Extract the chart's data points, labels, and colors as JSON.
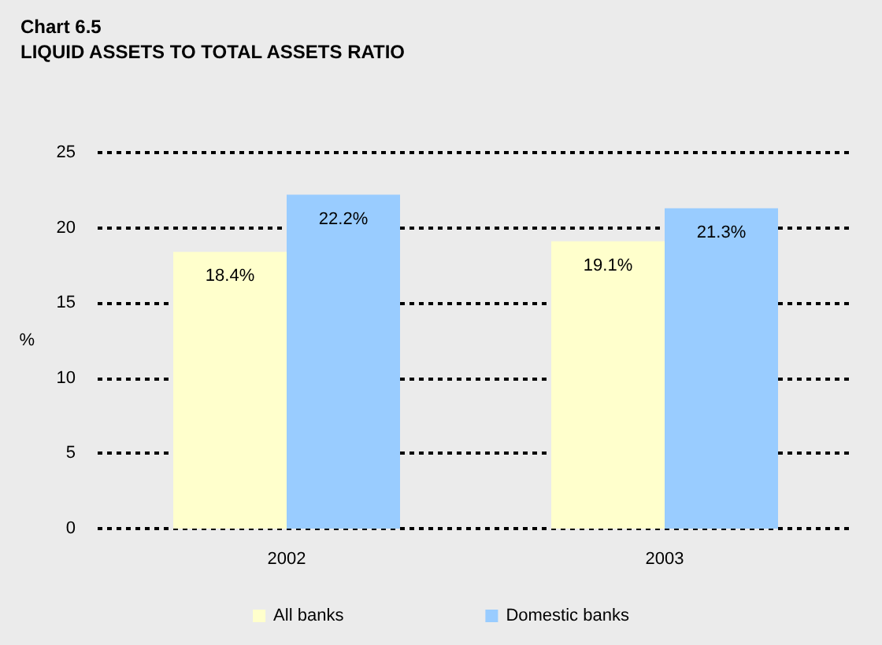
{
  "chart_data": {
    "type": "bar",
    "title": "Chart 6.5",
    "subtitle": "LIQUID ASSETS TO TOTAL ASSETS RATIO",
    "ylabel": "%",
    "categories": [
      "2002",
      "2003"
    ],
    "series": [
      {
        "name": "All banks",
        "color": "#ffffcc",
        "values": [
          18.4,
          19.1
        ],
        "value_labels": [
          "18.4%",
          "19.1%"
        ]
      },
      {
        "name": "Domestic banks",
        "color": "#99ccff",
        "values": [
          22.2,
          21.3
        ],
        "value_labels": [
          "22.2%",
          "21.3%"
        ]
      }
    ],
    "ylim": [
      0,
      25
    ],
    "yticks": [
      0,
      5,
      10,
      15,
      20,
      25
    ],
    "grid": "y",
    "legend": "bottom"
  }
}
